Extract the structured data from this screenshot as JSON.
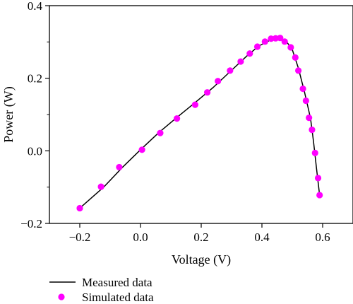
{
  "chart_data": {
    "type": "line",
    "xlabel": "Voltage (V)",
    "ylabel": "Power (W)",
    "xlim": [
      -0.3,
      0.7
    ],
    "ylim": [
      -0.2,
      0.4
    ],
    "x_ticks": [
      -0.2,
      0.0,
      0.2,
      0.4,
      0.6
    ],
    "x_tick_labels": [
      "−0.2",
      "0.0",
      "0.2",
      "0.4",
      "0.6"
    ],
    "y_ticks": [
      -0.2,
      0.0,
      0.2,
      0.4
    ],
    "y_tick_labels": [
      "−0.2",
      "0.0",
      "0.2",
      "0.4"
    ],
    "grid": false,
    "legend_position": "bottom-left, below plot",
    "colors": {
      "measured": "#000000",
      "simulated": "#ff00ff"
    },
    "series": [
      {
        "name": "Measured data",
        "style": "line",
        "x": [
          -0.2,
          -0.12,
          -0.06,
          0.0,
          0.06,
          0.12,
          0.18,
          0.24,
          0.3,
          0.35,
          0.39,
          0.42,
          0.44,
          0.46,
          0.48,
          0.5,
          0.52,
          0.54,
          0.56,
          0.57,
          0.58,
          0.59
        ],
        "y": [
          -0.158,
          -0.099,
          -0.046,
          0.003,
          0.05,
          0.092,
          0.133,
          0.175,
          0.222,
          0.261,
          0.289,
          0.302,
          0.309,
          0.311,
          0.302,
          0.279,
          0.228,
          0.163,
          0.09,
          0.025,
          -0.05,
          -0.122
        ]
      },
      {
        "name": "Simulated data",
        "style": "markers",
        "x": [
          -0.2,
          -0.13,
          -0.07,
          0.005,
          0.065,
          0.12,
          0.18,
          0.22,
          0.255,
          0.295,
          0.33,
          0.36,
          0.385,
          0.41,
          0.43,
          0.445,
          0.46,
          0.475,
          0.495,
          0.51,
          0.52,
          0.535,
          0.545,
          0.555,
          0.565,
          0.575,
          0.585,
          0.59
        ],
        "y": [
          -0.158,
          -0.099,
          -0.045,
          0.003,
          0.049,
          0.089,
          0.127,
          0.161,
          0.192,
          0.221,
          0.246,
          0.268,
          0.287,
          0.301,
          0.309,
          0.31,
          0.311,
          0.301,
          0.285,
          0.257,
          0.221,
          0.171,
          0.138,
          0.091,
          0.058,
          -0.006,
          -0.075,
          -0.122
        ]
      }
    ]
  }
}
